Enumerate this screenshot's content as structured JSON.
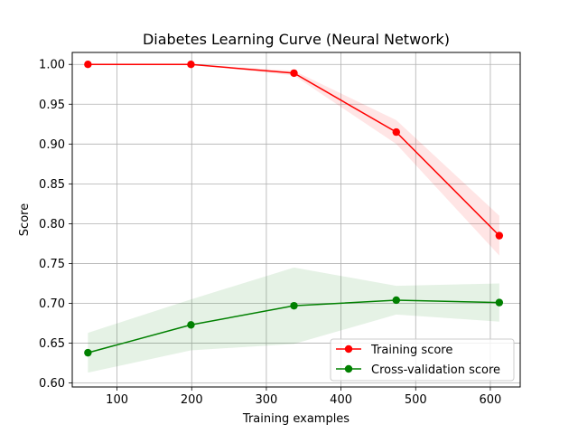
{
  "chart_data": {
    "type": "line",
    "title": "Diabetes Learning Curve (Neural Network)",
    "xlabel": "Training examples",
    "ylabel": "Score",
    "xlim": [
      40,
      640
    ],
    "ylim": [
      0.595,
      1.015
    ],
    "xticks": [
      100,
      200,
      300,
      400,
      500,
      600
    ],
    "yticks": [
      0.6,
      0.65,
      0.7,
      0.75,
      0.8,
      0.85,
      0.9,
      0.95,
      1.0
    ],
    "grid": true,
    "legend_position": "lower-right",
    "x": [
      61,
      199,
      337,
      474,
      612
    ],
    "series": [
      {
        "name": "Training score",
        "color": "#ff0000",
        "band_color": "#ff0000",
        "values": [
          1.0,
          1.0,
          0.989,
          0.915,
          0.785
        ],
        "upper": [
          1.0,
          1.0,
          0.992,
          0.93,
          0.81
        ],
        "lower": [
          1.0,
          1.0,
          0.986,
          0.9,
          0.76
        ]
      },
      {
        "name": "Cross-validation score",
        "color": "#008000",
        "band_color": "#008000",
        "values": [
          0.638,
          0.673,
          0.697,
          0.704,
          0.701
        ],
        "upper": [
          0.663,
          0.705,
          0.745,
          0.722,
          0.725
        ],
        "lower": [
          0.613,
          0.641,
          0.649,
          0.686,
          0.677
        ]
      }
    ]
  }
}
